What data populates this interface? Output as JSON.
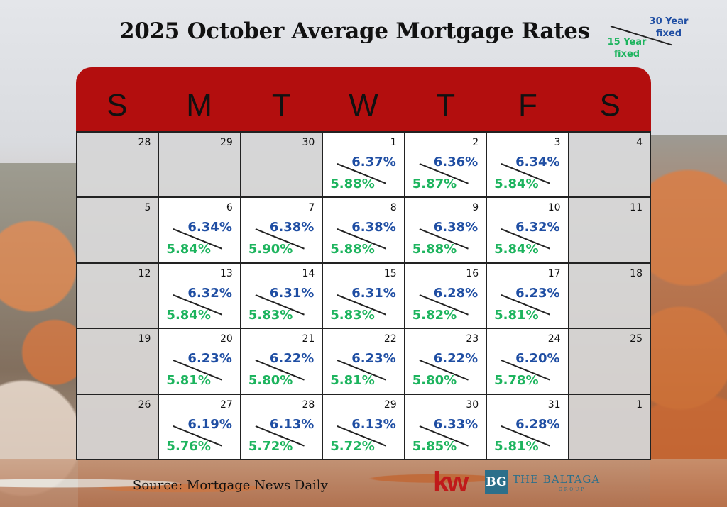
{
  "title": "2025 October Average Mortgage Rates",
  "legend": {
    "thirty_label": "30 Year fixed",
    "fifteen_label": "15 Year fixed"
  },
  "days": [
    "S",
    "M",
    "T",
    "W",
    "T",
    "F",
    "S"
  ],
  "colors": {
    "header": "#b30e0e",
    "thirty": "#1f4ea3",
    "fifteen": "#1db45e"
  },
  "weeks": [
    [
      {
        "day": "28",
        "inactive": true
      },
      {
        "day": "29",
        "inactive": true
      },
      {
        "day": "30",
        "inactive": true
      },
      {
        "day": "1",
        "r30": "6.37%",
        "r15": "5.88%"
      },
      {
        "day": "2",
        "r30": "6.36%",
        "r15": "5.87%"
      },
      {
        "day": "3",
        "r30": "6.34%",
        "r15": "5.84%"
      },
      {
        "day": "4",
        "inactive": true
      }
    ],
    [
      {
        "day": "5",
        "inactive": true
      },
      {
        "day": "6",
        "r30": "6.34%",
        "r15": "5.84%"
      },
      {
        "day": "7",
        "r30": "6.38%",
        "r15": "5.90%"
      },
      {
        "day": "8",
        "r30": "6.38%",
        "r15": "5.88%"
      },
      {
        "day": "9",
        "r30": "6.38%",
        "r15": "5.88%"
      },
      {
        "day": "10",
        "r30": "6.32%",
        "r15": "5.84%"
      },
      {
        "day": "11",
        "inactive": true
      }
    ],
    [
      {
        "day": "12",
        "inactive": true
      },
      {
        "day": "13",
        "r30": "6.32%",
        "r15": "5.84%"
      },
      {
        "day": "14",
        "r30": "6.31%",
        "r15": "5.83%"
      },
      {
        "day": "15",
        "r30": "6.31%",
        "r15": "5.83%"
      },
      {
        "day": "16",
        "r30": "6.28%",
        "r15": "5.82%"
      },
      {
        "day": "17",
        "r30": "6.23%",
        "r15": "5.81%"
      },
      {
        "day": "18",
        "inactive": true
      }
    ],
    [
      {
        "day": "19",
        "inactive": true
      },
      {
        "day": "20",
        "r30": "6.23%",
        "r15": "5.81%"
      },
      {
        "day": "21",
        "r30": "6.22%",
        "r15": "5.80%"
      },
      {
        "day": "22",
        "r30": "6.23%",
        "r15": "5.81%"
      },
      {
        "day": "23",
        "r30": "6.22%",
        "r15": "5.80%"
      },
      {
        "day": "24",
        "r30": "6.20%",
        "r15": "5.78%"
      },
      {
        "day": "25",
        "inactive": true
      }
    ],
    [
      {
        "day": "26",
        "inactive": true
      },
      {
        "day": "27",
        "r30": "6.19%",
        "r15": "5.76%"
      },
      {
        "day": "28",
        "r30": "6.13%",
        "r15": "5.72%"
      },
      {
        "day": "29",
        "r30": "6.13%",
        "r15": "5.72%"
      },
      {
        "day": "30",
        "r30": "6.33%",
        "r15": "5.85%"
      },
      {
        "day": "31",
        "r30": "6.28%",
        "r15": "5.81%"
      },
      {
        "day": "1",
        "inactive": true
      }
    ]
  ],
  "source": "Source: Mortgage News Daily",
  "logos": {
    "kw": "kw",
    "bg_mark": "BG",
    "brand_name": "THE BALTAGA",
    "brand_sub": "GROUP"
  }
}
